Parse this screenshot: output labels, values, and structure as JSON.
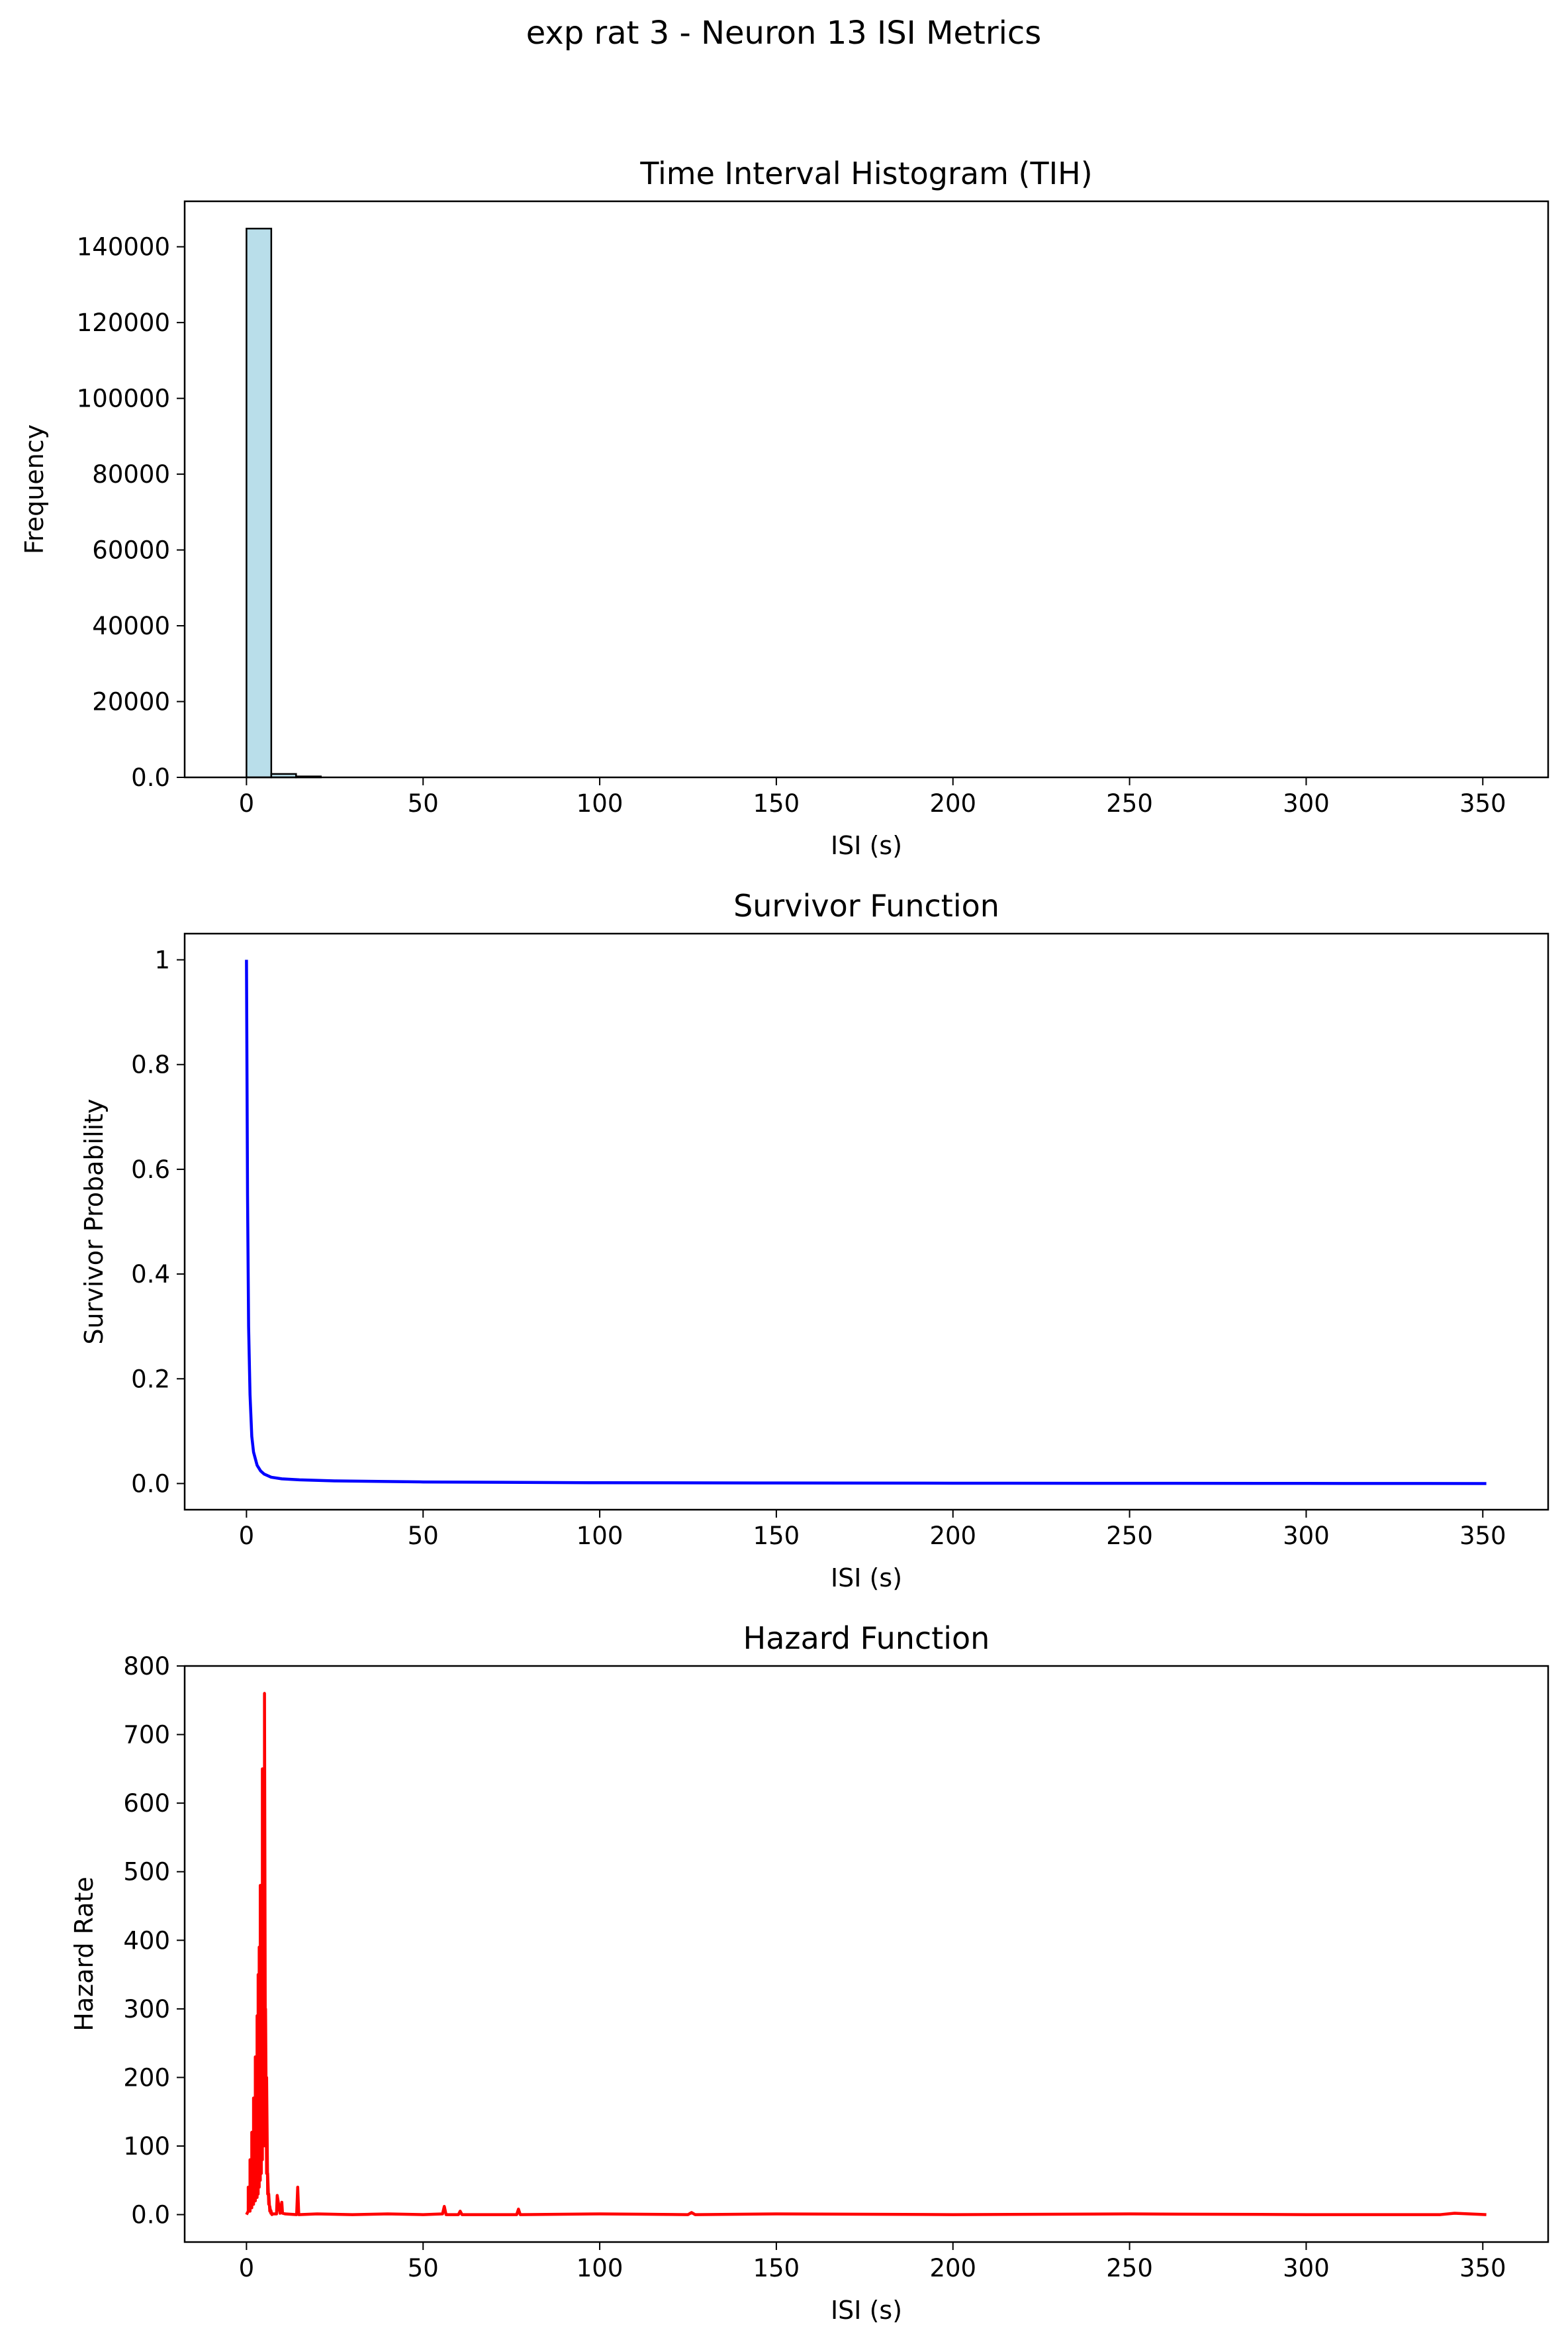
{
  "figure": {
    "suptitle": "exp rat 3 - Neuron 13 ISI Metrics"
  },
  "colors": {
    "histogram_fill": "#add8e6",
    "histogram_edge": "#000000",
    "survivor_line": "#0000ff",
    "hazard_line": "#ff0000",
    "axes": "#000000",
    "background": "#ffffff"
  },
  "chart_data": [
    {
      "type": "bar",
      "title": "Time Interval Histogram (TIH)",
      "xlabel": "ISI (s)",
      "ylabel": "Frequency",
      "xlim": [
        -17.5,
        368.5
      ],
      "ylim": [
        0,
        152000
      ],
      "grid": false,
      "xticks": [
        0,
        50,
        100,
        150,
        200,
        250,
        300,
        350
      ],
      "yticks": [
        0,
        20000,
        40000,
        60000,
        80000,
        100000,
        120000,
        140000
      ],
      "bin_width": 7.02,
      "bins_start": [
        0,
        7.02,
        14.04
      ],
      "values": [
        144800,
        900,
        250
      ]
    },
    {
      "type": "line",
      "title": "Survivor Function",
      "xlabel": "ISI (s)",
      "ylabel": "Survivor Probability",
      "xlim": [
        -17.5,
        368.5
      ],
      "ylim": [
        -0.05,
        1.05
      ],
      "grid": false,
      "xticks": [
        0,
        50,
        100,
        150,
        200,
        250,
        300,
        350
      ],
      "yticks": [
        0.0,
        0.2,
        0.4,
        0.6,
        0.8,
        1.0
      ],
      "series": [
        {
          "x": [
            0,
            0.3,
            0.6,
            1.0,
            1.5,
            2.0,
            3.0,
            4.0,
            5.0,
            7.0,
            10,
            15,
            25,
            50,
            100,
            150,
            200,
            250,
            300,
            351
          ],
          "y": [
            1.0,
            0.55,
            0.3,
            0.17,
            0.09,
            0.06,
            0.035,
            0.024,
            0.018,
            0.012,
            0.009,
            0.007,
            0.005,
            0.003,
            0.0015,
            0.001,
            0.0006,
            0.0004,
            0.0002,
            0.0
          ]
        }
      ]
    },
    {
      "type": "line",
      "title": "Hazard Function",
      "xlabel": "ISI (s)",
      "ylabel": "Hazard Rate",
      "xlim": [
        -17.5,
        368.5
      ],
      "ylim": [
        -40,
        800
      ],
      "grid": false,
      "xticks": [
        0,
        50,
        100,
        150,
        200,
        250,
        300,
        350
      ],
      "yticks": [
        0,
        100,
        200,
        300,
        400,
        500,
        600,
        700,
        800
      ],
      "series": [
        {
          "x": [
            0,
            0.5,
            0.5,
            1.0,
            1.0,
            1.5,
            1.5,
            2.0,
            2.0,
            2.5,
            2.5,
            3.0,
            3.0,
            3.3,
            3.3,
            3.6,
            3.6,
            3.9,
            3.9,
            4.2,
            4.2,
            4.5,
            4.5,
            4.8,
            4.8,
            5.1,
            5.1,
            5.4,
            5.4,
            5.7,
            5.7,
            6.0,
            6.0,
            6.3,
            6.3,
            6.6,
            6.6,
            6.9,
            6.9,
            7.2,
            7.5,
            8.5,
            8.7,
            9.5,
            10.0,
            10.2,
            11.0,
            14.2,
            14.5,
            14.8,
            20,
            30,
            40,
            50,
            55.5,
            56,
            56.5,
            60,
            60.5,
            61,
            76.5,
            77,
            77.5,
            100,
            125,
            126,
            127,
            150,
            200,
            250,
            300,
            338,
            342,
            351
          ],
          "y": [
            0,
            5,
            40,
            5,
            80,
            10,
            120,
            15,
            170,
            20,
            230,
            25,
            290,
            30,
            350,
            40,
            390,
            50,
            480,
            60,
            400,
            80,
            650,
            100,
            500,
            120,
            760,
            100,
            300,
            60,
            200,
            30,
            60,
            15,
            30,
            5,
            12,
            2,
            6,
            0,
            1,
            1,
            28,
            2,
            18,
            2,
            1,
            0,
            40,
            0,
            1,
            0,
            1,
            0,
            1,
            12,
            0,
            0,
            5,
            0,
            0,
            8,
            0,
            1,
            0,
            3,
            0,
            1,
            0,
            1,
            0,
            0,
            2,
            0
          ]
        }
      ]
    }
  ]
}
